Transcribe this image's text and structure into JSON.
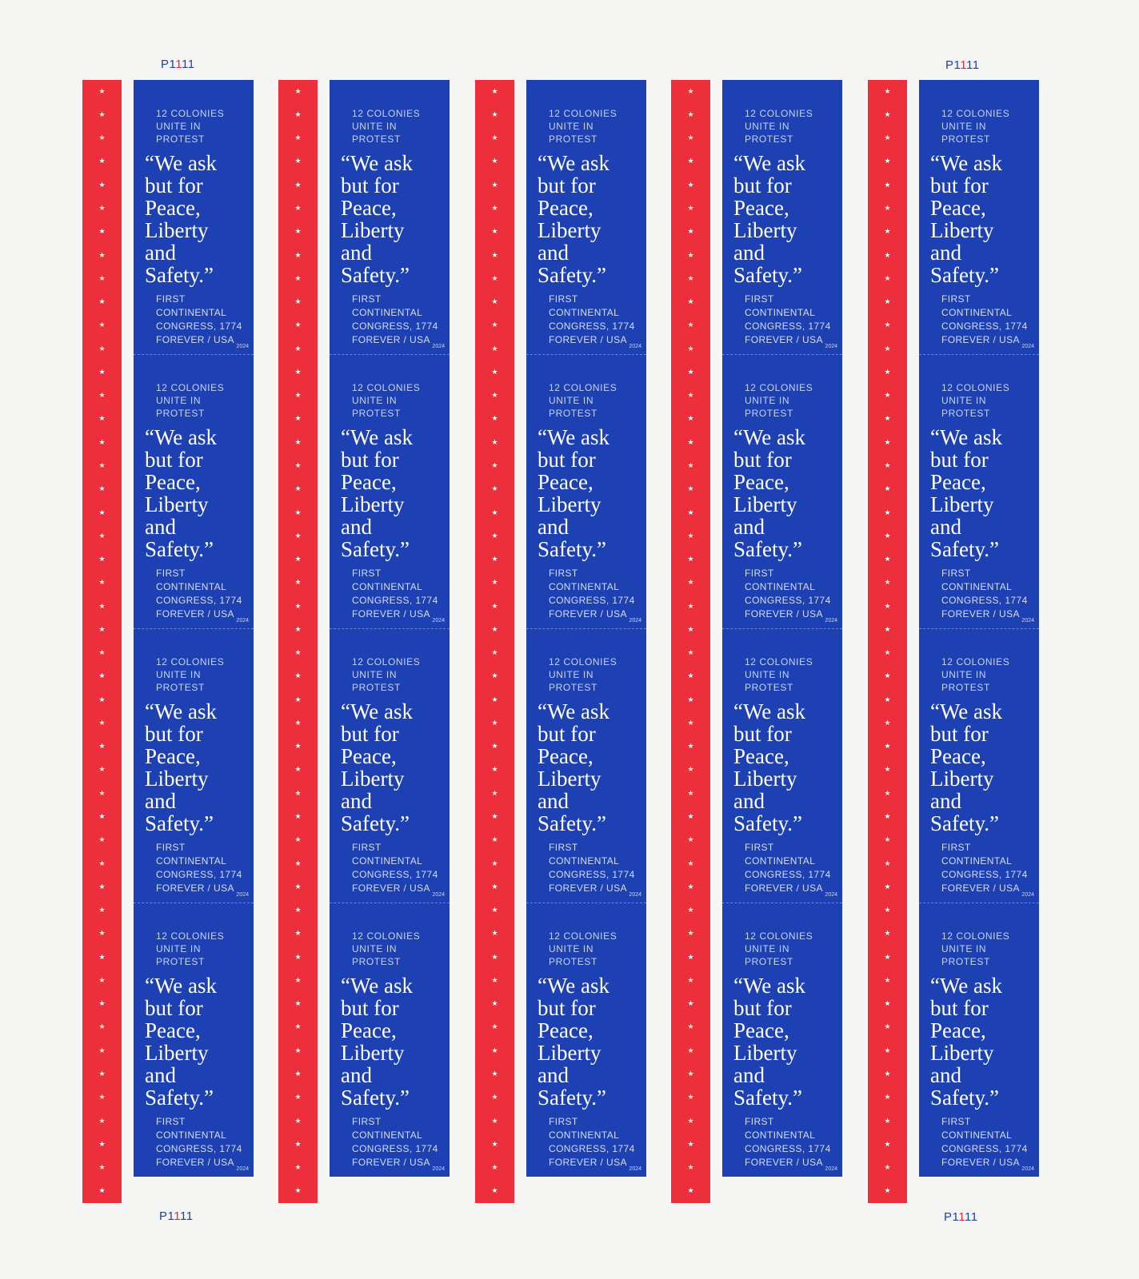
{
  "sheet": {
    "plate_number": "P1111",
    "plate_digits": [
      "P",
      "1",
      "1",
      "1",
      "1"
    ]
  },
  "stamp": {
    "kicker": "12 COLONIES\nUNITE IN\nPROTEST",
    "quote": "“We ask\n but for\n Peace,\n Liberty\n and\n Safety.”",
    "credit": "FIRST\nCONTINENTAL\nCONGRESS, 1774\nFOREVER / USA",
    "year": "2024"
  },
  "layout_grid": {
    "columns": 5,
    "rows": 4,
    "stars_per_stamp": 12
  },
  "colors": {
    "red_strip": "#ec2f3a",
    "stamp_blue": "#1d40b2",
    "sheet_background": "#f5f5f4",
    "plate_blue": "#1f3fa6",
    "plate_red": "#e8263a"
  }
}
